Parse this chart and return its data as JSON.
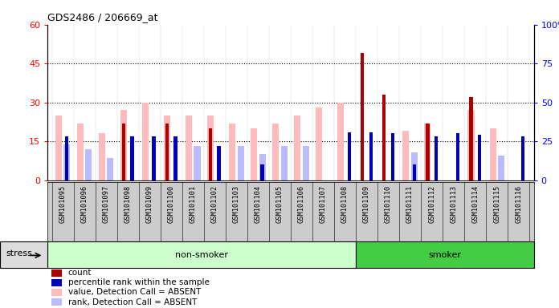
{
  "title": "GDS2486 / 206669_at",
  "samples": [
    "GSM101095",
    "GSM101096",
    "GSM101097",
    "GSM101098",
    "GSM101099",
    "GSM101100",
    "GSM101101",
    "GSM101102",
    "GSM101103",
    "GSM101104",
    "GSM101105",
    "GSM101106",
    "GSM101107",
    "GSM101108",
    "GSM101109",
    "GSM101110",
    "GSM101111",
    "GSM101112",
    "GSM101113",
    "GSM101114",
    "GSM101115",
    "GSM101116"
  ],
  "count": [
    0,
    0,
    0,
    22,
    0,
    22,
    0,
    20,
    0,
    0,
    0,
    0,
    0,
    0,
    49,
    33,
    0,
    22,
    0,
    32,
    0,
    0
  ],
  "percentile_rank": [
    28,
    0,
    0,
    28,
    28,
    28,
    0,
    22,
    0,
    10,
    0,
    0,
    0,
    31,
    31,
    30,
    10,
    28,
    30,
    29,
    0,
    28
  ],
  "value_absent": [
    25,
    22,
    18,
    27,
    30,
    25,
    25,
    25,
    22,
    20,
    22,
    25,
    28,
    30,
    0,
    0,
    19,
    22,
    0,
    27,
    20,
    0
  ],
  "rank_absent": [
    23,
    20,
    14,
    0,
    0,
    0,
    22,
    0,
    22,
    17,
    22,
    22,
    0,
    0,
    0,
    0,
    18,
    0,
    0,
    0,
    16,
    0
  ],
  "non_smoker_count": 14,
  "smoker_count": 8,
  "ylim_left": [
    0,
    60
  ],
  "ylim_right": [
    0,
    100
  ],
  "yticks_left": [
    0,
    15,
    30,
    45,
    60
  ],
  "yticks_right": [
    0,
    25,
    50,
    75,
    100
  ],
  "colors": {
    "count": "#aa0000",
    "percentile_rank": "#0000bb",
    "value_absent": "#ffbbbb",
    "rank_absent": "#bbbbff",
    "non_smoker_bg": "#ccffcc",
    "smoker_bg": "#44cc44",
    "sample_row_bg": "#cccccc",
    "plot_bg": "#ffffff"
  },
  "group_labels": [
    "non-smoker",
    "smoker"
  ],
  "legend": [
    "count",
    "percentile rank within the sample",
    "value, Detection Call = ABSENT",
    "rank, Detection Call = ABSENT"
  ],
  "stress_label": "stress"
}
